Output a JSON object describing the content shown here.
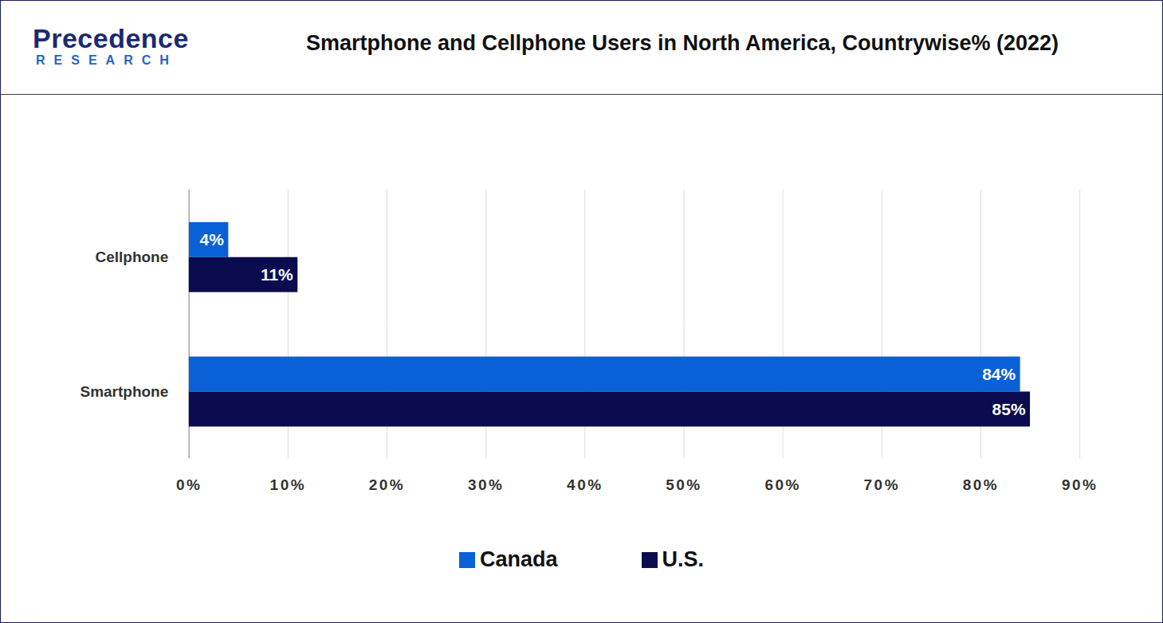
{
  "logo": {
    "name": "Precedence",
    "tagline": "RESEARCH"
  },
  "chart_data": {
    "type": "bar",
    "title": "Smartphone and Cellphone Users in North America, Countrywise% (2022)",
    "orientation": "horizontal",
    "categories": [
      "Cellphone",
      "Smartphone"
    ],
    "series": [
      {
        "name": "Canada",
        "color": "#0a60d6",
        "values": [
          4,
          84
        ],
        "value_labels": [
          "4%",
          "84%"
        ]
      },
      {
        "name": "U.S.",
        "color": "#0b0b4f",
        "values": [
          11,
          85
        ],
        "value_labels": [
          "11%",
          "85%"
        ]
      }
    ],
    "xlim": [
      0,
      90
    ],
    "xticks": [
      {
        "value": 0,
        "label": "0%"
      },
      {
        "value": 10,
        "label": "10%"
      },
      {
        "value": 20,
        "label": "20%"
      },
      {
        "value": 30,
        "label": "30%"
      },
      {
        "value": 40,
        "label": "40%"
      },
      {
        "value": 50,
        "label": "50%"
      },
      {
        "value": 60,
        "label": "60%"
      },
      {
        "value": 70,
        "label": "70%"
      },
      {
        "value": 80,
        "label": "80%"
      },
      {
        "value": 90,
        "label": "90%"
      }
    ],
    "grid": true,
    "data_labels": true,
    "legend": "bottom"
  }
}
